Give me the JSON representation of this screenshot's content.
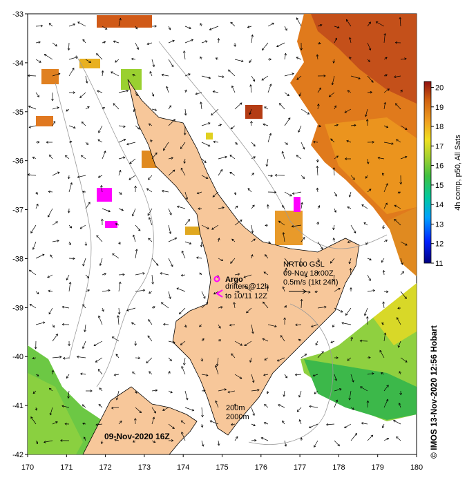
{
  "map": {
    "date_label": "09-Nov-2020 16Z",
    "credit": "©  IMOS 13-Nov-2020 12:56 Hobart",
    "colorbar_label": "4h comp, p50, All Sats",
    "colorbar_min": 11,
    "colorbar_max": 20.3,
    "colorbar_ticks": [
      "11",
      "12",
      "13",
      "14",
      "15",
      "16",
      "17",
      "18",
      "19",
      "20"
    ],
    "lon_ticks": [
      "170",
      "171",
      "172",
      "173",
      "174",
      "175",
      "176",
      "177",
      "178",
      "179",
      "180"
    ],
    "lat_ticks": [
      "-33",
      "-34",
      "-35",
      "-36",
      "-37",
      "-38",
      "-39",
      "-40",
      "-41",
      "-42"
    ],
    "lon_range": [
      170,
      180
    ],
    "lat_range": [
      -42,
      -33
    ],
    "argo_label": "Argo",
    "drifters_label": "drifters@12h",
    "drifters_label2": "to 10/11 12Z",
    "current_title": "NRT00 GSL",
    "current_time": "09-Nov 18:00Z",
    "current_scale": "0.5m/s (1kt 24h)",
    "contour_200": "200m",
    "contour_2000": "2000m",
    "colors": {
      "land": "#f7c79a",
      "warm": "#c85a14",
      "cool": "#39b54a",
      "argo": "#ff00ff"
    }
  }
}
